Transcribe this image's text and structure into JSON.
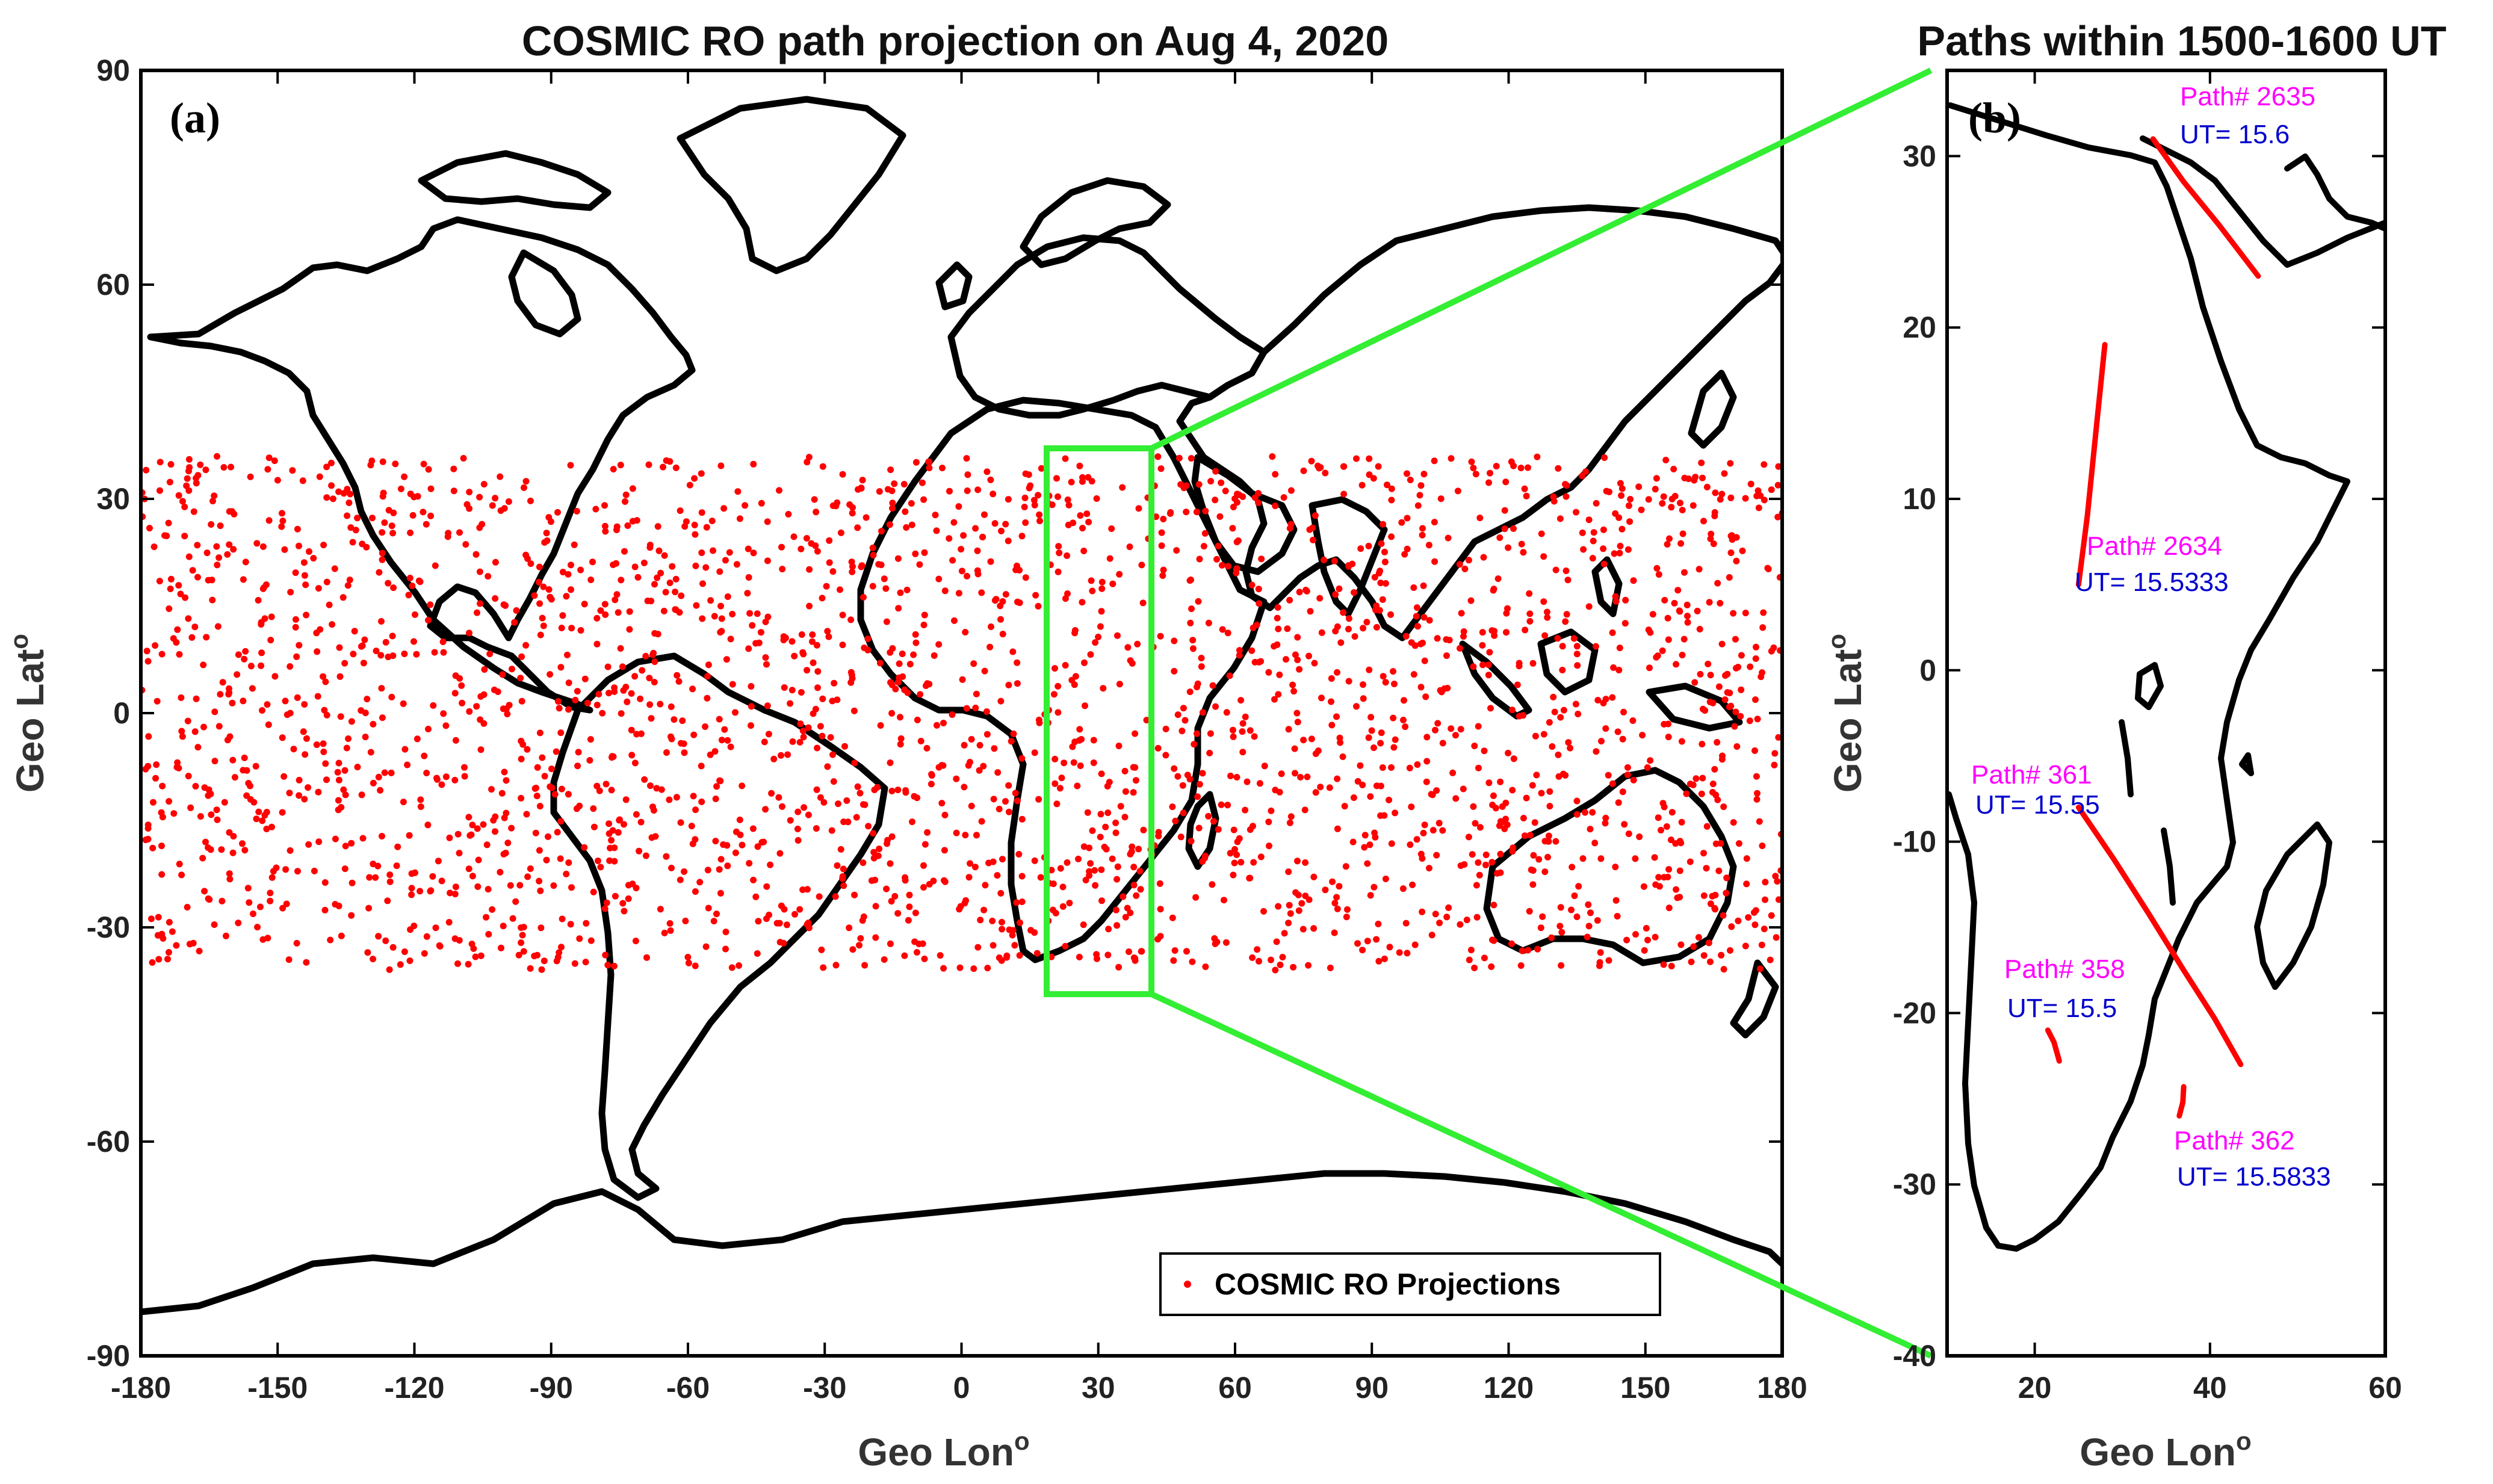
{
  "chart_data": [
    {
      "type": "scatter",
      "panel": "(a)",
      "title": "COSMIC RO path projection on Aug 4, 2020",
      "xlabel": "Geo Lon",
      "xlabel_sup": "o",
      "ylabel": "Geo Lat",
      "ylabel_sup": "o",
      "xlim": [
        -180,
        180
      ],
      "ylim": [
        -90,
        90
      ],
      "xticks": [
        -180,
        -150,
        -120,
        -90,
        -60,
        -30,
        0,
        30,
        60,
        90,
        120,
        150,
        180
      ],
      "yticks": [
        -90,
        -60,
        -30,
        0,
        30,
        60,
        90
      ],
      "legend": {
        "label": "COSMIC RO Projections",
        "placement": "bottom-right"
      },
      "series": [
        {
          "name": "COSMIC RO Projections",
          "color": "#ff0000",
          "marker": "dot",
          "lat_range": [
            -36,
            36
          ],
          "lon_range": [
            -180,
            180
          ],
          "approx_count": 2600
        }
      ],
      "zoom_box": {
        "lon": [
          18,
          41
        ],
        "lat": [
          -40,
          37
        ],
        "color": "#33ee33"
      }
    },
    {
      "type": "line",
      "panel": "(b)",
      "title": "Paths within 1500-1600 UT",
      "xlabel": "Geo Lon",
      "xlabel_sup": "o",
      "ylabel": "Geo Lat",
      "ylabel_sup": "o",
      "xlim": [
        10,
        60
      ],
      "ylim": [
        -40,
        35
      ],
      "xticks": [
        20,
        40,
        60
      ],
      "yticks": [
        -40,
        -30,
        -20,
        -10,
        0,
        10,
        20,
        30
      ],
      "series": [
        {
          "name": "Path# 2635",
          "ut": "UT= 15.6",
          "color": "#ff0000",
          "x": [
            33.5,
            37,
            41,
            45.5
          ],
          "y": [
            31,
            28.5,
            26,
            23
          ]
        },
        {
          "name": "Path# 2634",
          "ut": "UT= 15.5333",
          "color": "#ff0000",
          "x": [
            28,
            27,
            26,
            25
          ],
          "y": [
            19,
            14,
            9,
            5
          ]
        },
        {
          "name": "Path# 361",
          "ut": "UT= 15.55",
          "color": "#ff0000",
          "x": [
            25,
            29,
            33,
            37,
            40.5,
            43.5
          ],
          "y": [
            -8,
            -11,
            -14.2,
            -17.5,
            -20.3,
            -23
          ]
        },
        {
          "name": "Path# 358",
          "ut": "UT= 15.5",
          "color": "#ff0000",
          "x": [
            21.5,
            22.2,
            22.8
          ],
          "y": [
            -21,
            -21.7,
            -22.8
          ]
        },
        {
          "name": "Path# 362",
          "ut": "UT= 15.5833",
          "color": "#ff0000",
          "x": [
            36.5,
            36.9,
            37
          ],
          "y": [
            -26,
            -25.2,
            -24.3
          ]
        }
      ]
    }
  ]
}
